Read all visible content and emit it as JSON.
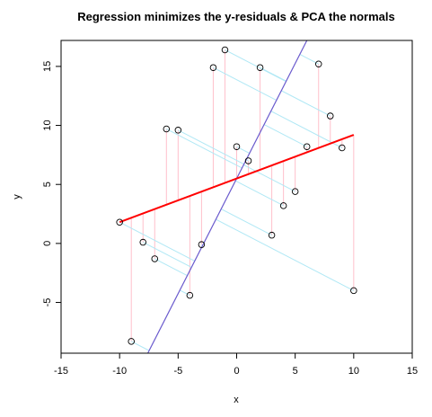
{
  "chart_data": {
    "type": "scatter",
    "title": "Regression minimizes the y-residuals & PCA the normals",
    "xlabel": "x",
    "ylabel": "y",
    "xlim": [
      -15,
      15
    ],
    "ylim": [
      -9.3,
      17.2
    ],
    "x_ticks": [
      -15,
      -10,
      -5,
      0,
      5,
      10,
      15
    ],
    "y_ticks": [
      -5,
      0,
      5,
      10,
      15
    ],
    "x_tick_labels": [
      "-15",
      "-10",
      "-5",
      "0",
      "5",
      "10",
      "15"
    ],
    "y_tick_labels": [
      "-5",
      "0",
      "5",
      "10",
      "15"
    ],
    "grid": false,
    "legend": "none",
    "points": [
      {
        "x": -10,
        "y": 1.8
      },
      {
        "x": -9,
        "y": -8.3
      },
      {
        "x": -8,
        "y": 0.1
      },
      {
        "x": -7,
        "y": -1.3
      },
      {
        "x": -6,
        "y": 9.7
      },
      {
        "x": -5,
        "y": 9.6
      },
      {
        "x": -4,
        "y": -4.4
      },
      {
        "x": -3,
        "y": -0.1
      },
      {
        "x": -2,
        "y": 14.9
      },
      {
        "x": -1,
        "y": 16.4
      },
      {
        "x": 0,
        "y": 8.2
      },
      {
        "x": 1,
        "y": 7.0
      },
      {
        "x": 2,
        "y": 14.9
      },
      {
        "x": 3,
        "y": 0.7
      },
      {
        "x": 4,
        "y": 3.2
      },
      {
        "x": 5,
        "y": 4.4
      },
      {
        "x": 6,
        "y": 8.2
      },
      {
        "x": 7,
        "y": 15.2
      },
      {
        "x": 8,
        "y": 10.8
      },
      {
        "x": 9,
        "y": 8.1
      },
      {
        "x": 10,
        "y": -4.0
      }
    ],
    "regression_line": {
      "intercept": 5.5,
      "slope": 0.37,
      "x_range": [
        -10,
        10
      ],
      "color": "#ff0000"
    },
    "pca_line": {
      "intercept": 5.5,
      "slope": 1.95,
      "color": "#6a5acd"
    },
    "y_residual_color": "#ffc0cb",
    "normal_residual_color": "#b0e8f5"
  }
}
